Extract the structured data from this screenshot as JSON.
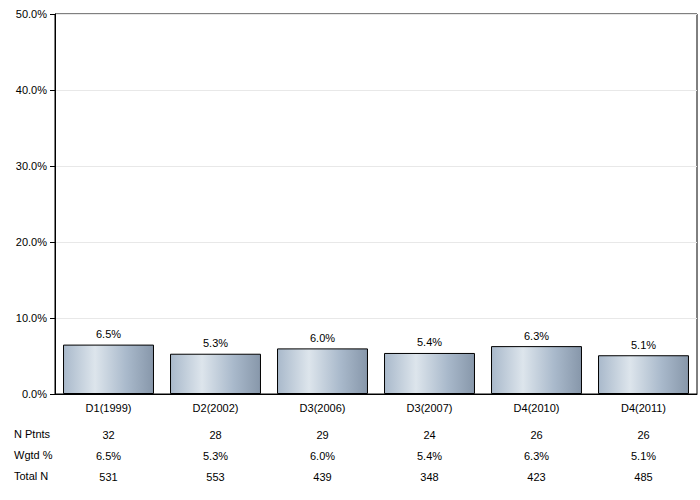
{
  "chart_data": {
    "type": "bar",
    "categories": [
      "D1(1999)",
      "D2(2002)",
      "D3(2006)",
      "D3(2007)",
      "D4(2010)",
      "D4(2011)"
    ],
    "values": [
      6.5,
      5.3,
      6.0,
      5.4,
      6.3,
      5.1
    ],
    "value_labels": [
      "6.5%",
      "5.3%",
      "6.0%",
      "5.4%",
      "6.3%",
      "5.1%"
    ],
    "data_labels": true,
    "color": "#a9b9cb",
    "ylim": [
      0,
      50
    ],
    "yticks": [
      {
        "value": 0,
        "label": "0.0%"
      },
      {
        "value": 10,
        "label": "10.0%"
      },
      {
        "value": 20,
        "label": "20.0%"
      },
      {
        "value": 30,
        "label": "30.0%"
      },
      {
        "value": 40,
        "label": "40.0%"
      },
      {
        "value": 50,
        "label": "50.0%"
      }
    ],
    "grid": true,
    "table": {
      "rows": [
        {
          "label": "N Ptnts",
          "values": [
            "32",
            "28",
            "29",
            "24",
            "26",
            "26"
          ]
        },
        {
          "label": "Wgtd %",
          "values": [
            "6.5%",
            "5.3%",
            "6.0%",
            "5.4%",
            "6.3%",
            "5.1%"
          ]
        },
        {
          "label": "Total N",
          "values": [
            "531",
            "553",
            "439",
            "348",
            "423",
            "485"
          ]
        }
      ]
    }
  }
}
